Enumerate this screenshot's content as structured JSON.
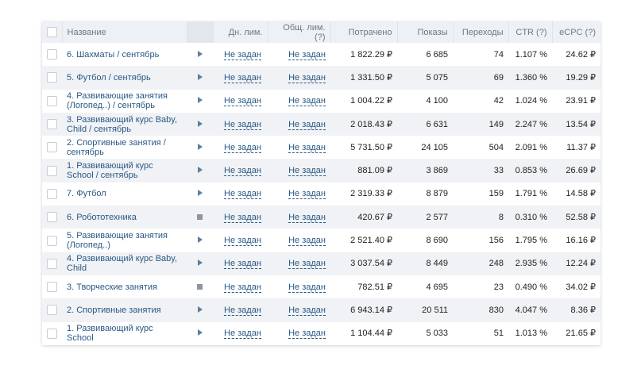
{
  "columns": {
    "name": "Название",
    "day_limit": "Дн. лим.",
    "total_limit": "Общ. лим. (?)",
    "spent": "Потрачено",
    "shows": "Показы",
    "clicks": "Переходы",
    "ctr": "CTR (?)",
    "ecpc": "eCPC (?)"
  },
  "rows": [
    {
      "name": "6. Шахматы / сентябрь",
      "status": "play",
      "day_limit": "Не задан",
      "total_limit": "Не задан",
      "spent": "1 822.29 ₽",
      "shows": "6 685",
      "clicks": "74",
      "ctr": "1.107 %",
      "ecpc": "24.62 ₽"
    },
    {
      "name": "5. Футбол / сентябрь",
      "status": "play",
      "day_limit": "Не задан",
      "total_limit": "Не задан",
      "spent": "1 331.50 ₽",
      "shows": "5 075",
      "clicks": "69",
      "ctr": "1.360 %",
      "ecpc": "19.29 ₽"
    },
    {
      "name": "4. Развивающие занятия (Логопед..) / сентябрь",
      "status": "play",
      "day_limit": "Не задан",
      "total_limit": "Не задан",
      "spent": "1 004.22 ₽",
      "shows": "4 100",
      "clicks": "42",
      "ctr": "1.024 %",
      "ecpc": "23.91 ₽"
    },
    {
      "name": "3. Развивающий курс Baby, Child / сентябрь",
      "status": "play",
      "day_limit": "Не задан",
      "total_limit": "Не задан",
      "spent": "2 018.43 ₽",
      "shows": "6 631",
      "clicks": "149",
      "ctr": "2.247 %",
      "ecpc": "13.54 ₽"
    },
    {
      "name": "2. Спортивные занятия / сентябрь",
      "status": "play",
      "day_limit": "Не задан",
      "total_limit": "Не задан",
      "spent": "5 731.50 ₽",
      "shows": "24 105",
      "clicks": "504",
      "ctr": "2.091 %",
      "ecpc": "11.37 ₽"
    },
    {
      "name": "1. Развивающий курс School / сентябрь",
      "status": "play",
      "day_limit": "Не задан",
      "total_limit": "Не задан",
      "spent": "881.09 ₽",
      "shows": "3 869",
      "clicks": "33",
      "ctr": "0.853 %",
      "ecpc": "26.69 ₽"
    },
    {
      "name": "7. Футбол",
      "status": "play",
      "day_limit": "Не задан",
      "total_limit": "Не задан",
      "spent": "2 319.33 ₽",
      "shows": "8 879",
      "clicks": "159",
      "ctr": "1.791 %",
      "ecpc": "14.58 ₽"
    },
    {
      "name": "6. Робототехника",
      "status": "stop",
      "day_limit": "Не задан",
      "total_limit": "Не задан",
      "spent": "420.67 ₽",
      "shows": "2 577",
      "clicks": "8",
      "ctr": "0.310 %",
      "ecpc": "52.58 ₽"
    },
    {
      "name": "5. Развивающие занятия (Логопед..)",
      "status": "play",
      "day_limit": "Не задан",
      "total_limit": "Не задан",
      "spent": "2 521.40 ₽",
      "shows": "8 690",
      "clicks": "156",
      "ctr": "1.795 %",
      "ecpc": "16.16 ₽"
    },
    {
      "name": "4. Развивающий курс Baby, Child",
      "status": "play",
      "day_limit": "Не задан",
      "total_limit": "Не задан",
      "spent": "3 037.54 ₽",
      "shows": "8 449",
      "clicks": "248",
      "ctr": "2.935 %",
      "ecpc": "12.24 ₽"
    },
    {
      "name": "3. Творческие занятия",
      "status": "stop",
      "day_limit": "Не задан",
      "total_limit": "Не задан",
      "spent": "782.51 ₽",
      "shows": "4 695",
      "clicks": "23",
      "ctr": "0.490 %",
      "ecpc": "34.02 ₽"
    },
    {
      "name": "2. Спортивные занятия",
      "status": "play",
      "day_limit": "Не задан",
      "total_limit": "Не задан",
      "spent": "6 943.14 ₽",
      "shows": "20 511",
      "clicks": "830",
      "ctr": "4.047 %",
      "ecpc": "8.36 ₽"
    },
    {
      "name": "1. Развивающий курс School",
      "status": "play",
      "day_limit": "Не задан",
      "total_limit": "Не задан",
      "spent": "1 104.44 ₽",
      "shows": "5 033",
      "clicks": "51",
      "ctr": "1.013 %",
      "ecpc": "21.65 ₽"
    }
  ]
}
